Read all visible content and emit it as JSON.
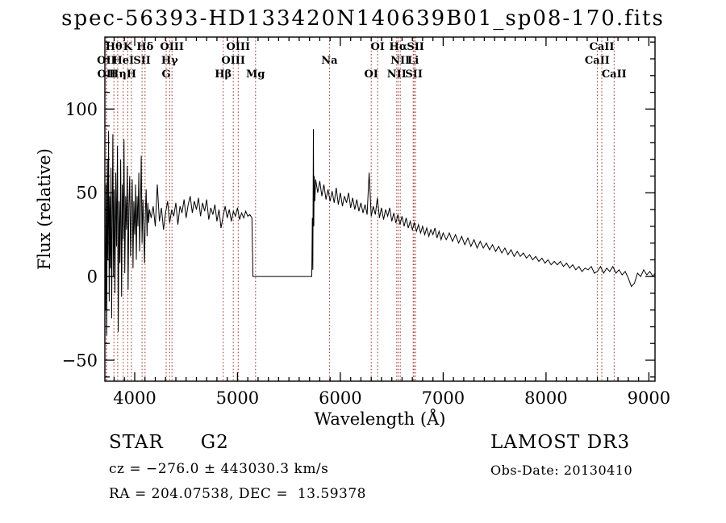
{
  "footer": {
    "left": {
      "object_class": "STAR",
      "object_subclass": "G2",
      "cz": "cz = −276.0 ± 443030.3 km/s",
      "radec": "RA = 204.07538, DEC =  13.59378"
    },
    "right": {
      "survey": "LAMOST DR3",
      "obs_date": "Obs-Date: 20130410"
    }
  },
  "chart_data": {
    "type": "line",
    "title": "spec-56393-HD133420N140639B01_sp08-170.fits",
    "xlabel": "Wavelength (Å)",
    "ylabel": "Flux (relative)",
    "xlim": [
      3710,
      9060
    ],
    "ylim": [
      -62.5,
      143
    ],
    "x_ticks": [
      4000,
      5000,
      6000,
      7000,
      8000,
      9000
    ],
    "x_minor_step": 100,
    "y_ticks": [
      -50,
      0,
      50,
      100
    ],
    "y_minor_step": 10,
    "grid": false,
    "colors": {
      "spectrum": "#000000",
      "line_marker": "#993129",
      "axis": "#000000",
      "background": "#ffffff"
    },
    "spectral_lines": [
      {
        "wavelength": 3725,
        "label": "OII",
        "row": 2
      },
      {
        "wavelength": 3727,
        "label": "OII",
        "row": 3
      },
      {
        "wavelength": 3798,
        "label": "Hθ",
        "row": 1
      },
      {
        "wavelength": 3835,
        "label": "Hη",
        "row": 3
      },
      {
        "wavelength": 3889,
        "label": "HeI",
        "row": 2
      },
      {
        "wavelength": 3933,
        "label": "K",
        "row": 1
      },
      {
        "wavelength": 3968,
        "label": "H",
        "row": 3
      },
      {
        "wavelength": 4072,
        "label": "SII",
        "row": 2
      },
      {
        "wavelength": 4101,
        "label": "Hδ",
        "row": 1
      },
      {
        "wavelength": 4306,
        "label": "G",
        "row": 3
      },
      {
        "wavelength": 4340,
        "label": "Hγ",
        "row": 2
      },
      {
        "wavelength": 4363,
        "label": "OIII",
        "row": 1
      },
      {
        "wavelength": 4861,
        "label": "Hβ",
        "row": 3
      },
      {
        "wavelength": 4959,
        "label": "OIII",
        "row": 2
      },
      {
        "wavelength": 5007,
        "label": "OIII",
        "row": 1
      },
      {
        "wavelength": 5175,
        "label": "Mg",
        "row": 3
      },
      {
        "wavelength": 5894,
        "label": "Na",
        "row": 2
      },
      {
        "wavelength": 6300,
        "label": "OI",
        "row": 3
      },
      {
        "wavelength": 6363,
        "label": "OI",
        "row": 1
      },
      {
        "wavelength": 6548,
        "label": "NII",
        "row": 3
      },
      {
        "wavelength": 6563,
        "label": "Hα",
        "row": 1
      },
      {
        "wavelength": 6583,
        "label": "NII",
        "row": 2
      },
      {
        "wavelength": 6708,
        "label": "Li",
        "row": 2
      },
      {
        "wavelength": 6716,
        "label": "SII",
        "row": 3
      },
      {
        "wavelength": 6731,
        "label": "SII",
        "row": 1
      },
      {
        "wavelength": 8498,
        "label": "CaII",
        "row": 2
      },
      {
        "wavelength": 8542,
        "label": "CaII",
        "row": 1
      },
      {
        "wavelength": 8662,
        "label": "CaII",
        "row": 3
      }
    ],
    "spectrum": [
      [
        3710,
        25
      ],
      [
        3716,
        -20
      ],
      [
        3722,
        55
      ],
      [
        3728,
        -35
      ],
      [
        3734,
        70
      ],
      [
        3740,
        10
      ],
      [
        3746,
        87
      ],
      [
        3752,
        -15
      ],
      [
        3758,
        48
      ],
      [
        3764,
        5
      ],
      [
        3770,
        65
      ],
      [
        3776,
        -25
      ],
      [
        3782,
        40
      ],
      [
        3788,
        85
      ],
      [
        3794,
        0
      ],
      [
        3800,
        52
      ],
      [
        3808,
        -10
      ],
      [
        3816,
        62
      ],
      [
        3824,
        18
      ],
      [
        3832,
        78
      ],
      [
        3840,
        -33
      ],
      [
        3848,
        45
      ],
      [
        3856,
        8
      ],
      [
        3864,
        70
      ],
      [
        3872,
        -12
      ],
      [
        3880,
        55
      ],
      [
        3888,
        22
      ],
      [
        3896,
        82
      ],
      [
        3904,
        2
      ],
      [
        3912,
        48
      ],
      [
        3920,
        28
      ],
      [
        3928,
        66
      ],
      [
        3936,
        -8
      ],
      [
        3944,
        42
      ],
      [
        3952,
        60
      ],
      [
        3960,
        12
      ],
      [
        3968,
        38
      ],
      [
        3976,
        58
      ],
      [
        3984,
        5
      ],
      [
        3992,
        45
      ],
      [
        4000,
        25
      ],
      [
        4008,
        55
      ],
      [
        4016,
        10
      ],
      [
        4024,
        48
      ],
      [
        4032,
        30
      ],
      [
        4040,
        62
      ],
      [
        4048,
        15
      ],
      [
        4056,
        40
      ],
      [
        4064,
        72
      ],
      [
        4072,
        20
      ],
      [
        4080,
        46
      ],
      [
        4088,
        28
      ],
      [
        4096,
        8
      ],
      [
        4104,
        38
      ],
      [
        4112,
        52
      ],
      [
        4120,
        24
      ],
      [
        4128,
        44
      ],
      [
        4136,
        32
      ],
      [
        4144,
        40
      ],
      [
        4160,
        35
      ],
      [
        4180,
        42
      ],
      [
        4200,
        30
      ],
      [
        4220,
        55
      ],
      [
        4240,
        33
      ],
      [
        4260,
        41
      ],
      [
        4280,
        28
      ],
      [
        4300,
        38
      ],
      [
        4320,
        45
      ],
      [
        4340,
        32
      ],
      [
        4360,
        40
      ],
      [
        4380,
        36
      ],
      [
        4400,
        44
      ],
      [
        4420,
        31
      ],
      [
        4440,
        42
      ],
      [
        4460,
        38
      ],
      [
        4480,
        46
      ],
      [
        4500,
        35
      ],
      [
        4520,
        43
      ],
      [
        4540,
        48
      ],
      [
        4560,
        38
      ],
      [
        4580,
        45
      ],
      [
        4600,
        40
      ],
      [
        4620,
        47
      ],
      [
        4640,
        36
      ],
      [
        4660,
        44
      ],
      [
        4680,
        39
      ],
      [
        4700,
        46
      ],
      [
        4720,
        34
      ],
      [
        4740,
        41
      ],
      [
        4760,
        37
      ],
      [
        4780,
        43
      ],
      [
        4800,
        33
      ],
      [
        4820,
        40
      ],
      [
        4840,
        29
      ],
      [
        4860,
        36
      ],
      [
        4880,
        42
      ],
      [
        4900,
        35
      ],
      [
        4920,
        40
      ],
      [
        4940,
        33
      ],
      [
        4960,
        39
      ],
      [
        4980,
        36
      ],
      [
        5000,
        41
      ],
      [
        5020,
        34
      ],
      [
        5040,
        38
      ],
      [
        5060,
        35
      ],
      [
        5080,
        39
      ],
      [
        5100,
        36
      ],
      [
        5120,
        37
      ],
      [
        5140,
        35
      ],
      [
        5150,
        0
      ],
      [
        5250,
        0
      ],
      [
        5350,
        0
      ],
      [
        5450,
        0
      ],
      [
        5550,
        0
      ],
      [
        5650,
        0
      ],
      [
        5722,
        0
      ],
      [
        5728,
        35
      ],
      [
        5732,
        4
      ],
      [
        5738,
        88
      ],
      [
        5742,
        30
      ],
      [
        5746,
        60
      ],
      [
        5752,
        45
      ],
      [
        5760,
        58
      ],
      [
        5780,
        50
      ],
      [
        5800,
        57
      ],
      [
        5820,
        48
      ],
      [
        5840,
        55
      ],
      [
        5860,
        46
      ],
      [
        5880,
        52
      ],
      [
        5900,
        45
      ],
      [
        5920,
        51
      ],
      [
        5940,
        44
      ],
      [
        5960,
        53
      ],
      [
        5980,
        43
      ],
      [
        6000,
        50
      ],
      [
        6020,
        42
      ],
      [
        6040,
        48
      ],
      [
        6060,
        44
      ],
      [
        6080,
        50
      ],
      [
        6100,
        41
      ],
      [
        6120,
        47
      ],
      [
        6140,
        40
      ],
      [
        6160,
        46
      ],
      [
        6180,
        39
      ],
      [
        6200,
        44
      ],
      [
        6220,
        38
      ],
      [
        6240,
        43
      ],
      [
        6260,
        37
      ],
      [
        6280,
        62
      ],
      [
        6300,
        36
      ],
      [
        6320,
        42
      ],
      [
        6340,
        37
      ],
      [
        6360,
        47
      ],
      [
        6380,
        35
      ],
      [
        6400,
        41
      ],
      [
        6420,
        34
      ],
      [
        6440,
        40
      ],
      [
        6460,
        36
      ],
      [
        6480,
        41
      ],
      [
        6500,
        33
      ],
      [
        6520,
        38
      ],
      [
        6540,
        32
      ],
      [
        6560,
        37
      ],
      [
        6580,
        31
      ],
      [
        6600,
        36
      ],
      [
        6620,
        30
      ],
      [
        6640,
        35
      ],
      [
        6660,
        29
      ],
      [
        6680,
        33
      ],
      [
        6700,
        28
      ],
      [
        6720,
        32
      ],
      [
        6740,
        27
      ],
      [
        6760,
        31
      ],
      [
        6780,
        26
      ],
      [
        6800,
        30
      ],
      [
        6820,
        25
      ],
      [
        6840,
        29
      ],
      [
        6860,
        24
      ],
      [
        6880,
        28
      ],
      [
        6900,
        25
      ],
      [
        6920,
        29
      ],
      [
        6940,
        23
      ],
      [
        6960,
        27
      ],
      [
        6980,
        22
      ],
      [
        7000,
        26
      ],
      [
        7030,
        22
      ],
      [
        7060,
        26
      ],
      [
        7090,
        21
      ],
      [
        7120,
        25
      ],
      [
        7150,
        20
      ],
      [
        7180,
        24
      ],
      [
        7210,
        19
      ],
      [
        7240,
        23
      ],
      [
        7270,
        18
      ],
      [
        7300,
        22
      ],
      [
        7330,
        17
      ],
      [
        7360,
        21
      ],
      [
        7390,
        17
      ],
      [
        7420,
        20
      ],
      [
        7450,
        16
      ],
      [
        7480,
        19
      ],
      [
        7510,
        15
      ],
      [
        7540,
        18
      ],
      [
        7570,
        14
      ],
      [
        7600,
        17
      ],
      [
        7630,
        13
      ],
      [
        7660,
        16
      ],
      [
        7690,
        12
      ],
      [
        7720,
        15
      ],
      [
        7750,
        12
      ],
      [
        7780,
        14
      ],
      [
        7810,
        11
      ],
      [
        7840,
        13
      ],
      [
        7870,
        10
      ],
      [
        7900,
        12
      ],
      [
        7930,
        9
      ],
      [
        7960,
        11
      ],
      [
        7990,
        8
      ],
      [
        8020,
        10
      ],
      [
        8050,
        7
      ],
      [
        8080,
        9
      ],
      [
        8110,
        7
      ],
      [
        8140,
        9
      ],
      [
        8170,
        6
      ],
      [
        8200,
        8
      ],
      [
        8230,
        5
      ],
      [
        8260,
        7
      ],
      [
        8290,
        4
      ],
      [
        8320,
        6
      ],
      [
        8350,
        3
      ],
      [
        8380,
        5
      ],
      [
        8410,
        4
      ],
      [
        8440,
        6
      ],
      [
        8470,
        2
      ],
      [
        8500,
        3
      ],
      [
        8530,
        6
      ],
      [
        8560,
        2
      ],
      [
        8590,
        5
      ],
      [
        8620,
        3
      ],
      [
        8650,
        6
      ],
      [
        8680,
        2
      ],
      [
        8710,
        4
      ],
      [
        8740,
        1
      ],
      [
        8770,
        3
      ],
      [
        8800,
        -1
      ],
      [
        8830,
        -6
      ],
      [
        8860,
        -4
      ],
      [
        8890,
        2
      ],
      [
        8920,
        0
      ],
      [
        8950,
        4
      ],
      [
        8980,
        1
      ],
      [
        9010,
        3
      ],
      [
        9040,
        0
      ],
      [
        9060,
        2
      ]
    ]
  }
}
